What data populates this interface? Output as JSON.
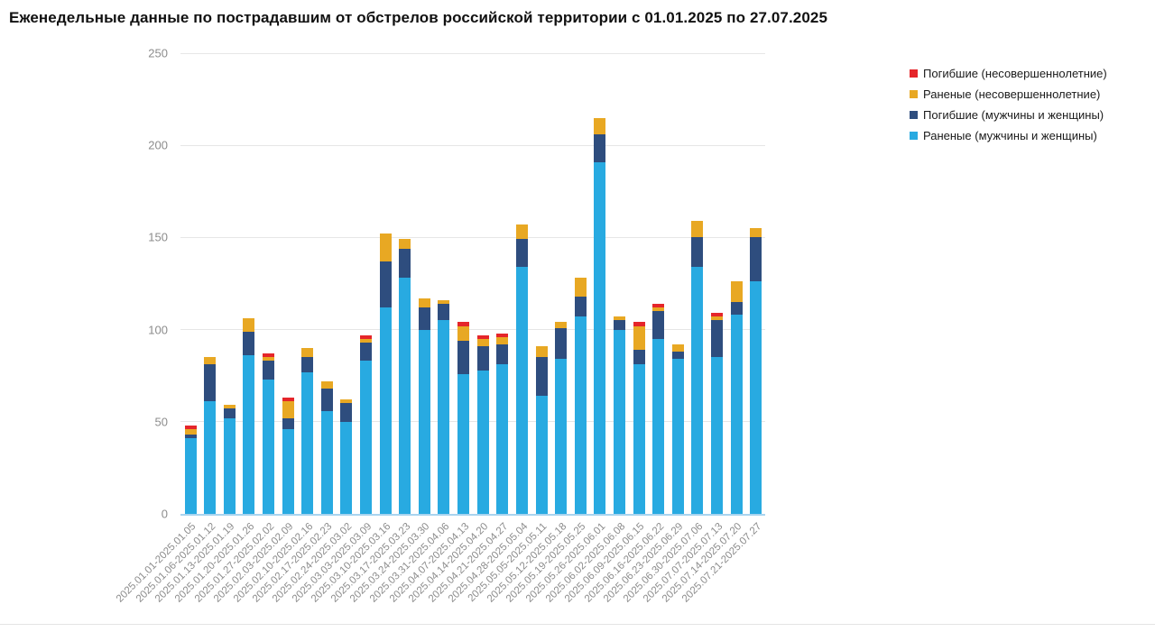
{
  "page": {
    "title": "Еженедельные данные по пострадавшим от обстрелов российской территории с 01.01.2025 по 27.07.2025"
  },
  "colors": {
    "red": "#e5252a",
    "orange": "#e8a823",
    "navy": "#2e4d7e",
    "light_blue": "#28aae1",
    "grid": "#e6e6e6",
    "axis_text": "#8c8c8c",
    "baseline": "#a9d4ef",
    "title_text": "#111111",
    "legend_text": "#1a1a1a"
  },
  "chart_data": {
    "type": "bar",
    "stacked": true,
    "title": "Еженедельные данные по пострадавшим от обстрелов российской территории с 01.01.2025 по 27.07.2025",
    "xlabel": "",
    "ylabel": "",
    "ylim": [
      0,
      250
    ],
    "yticks": [
      0,
      50,
      100,
      150,
      200,
      250
    ],
    "grid": true,
    "legend_position": "top-right",
    "categories": [
      "2025.01.01-2025.01.05",
      "2025.01.06-2025.01.12",
      "2025.01.13-2025.01.19",
      "2025.01.20-2025.01.26",
      "2025.01.27-2025.02.02",
      "2025.02.03-2025.02.09",
      "2025.02.10-2025.02.16",
      "2025.02.17-2025.02.23",
      "2025.02.24-2025.03.02",
      "2025.03.03-2025.03.09",
      "2025.03.10-2025.03.16",
      "2025.03.17-2025.03.23",
      "2025.03.24-2025.03.30",
      "2025.03.31-2025.04.06",
      "2025.04.07-2025.04.13",
      "2025.04.14-2025.04.20",
      "2025.04.21-2025.04.27",
      "2025.04.28-2025.05.04",
      "2025.05.05-2025.05.11",
      "2025.05.12-2025.05.18",
      "2025.05.19-2025.05.25",
      "2025.05.26-2025.06.01",
      "2025.06.02-2025.06.08",
      "2025.06.09-2025.06.15",
      "2025.06.16-2025.06.22",
      "2025.06.23-2025.06.29",
      "2025.06.30-2025.07.06",
      "2025.07.07-2025.07.13",
      "2025.07.14-2025.07.20",
      "2025.07.21-2025.07.27"
    ],
    "series": [
      {
        "name": "Погибшие (несовершеннолетние)",
        "color_key": "red",
        "values": [
          2,
          0,
          0,
          0,
          2,
          2,
          0,
          0,
          0,
          2,
          0,
          0,
          0,
          0,
          2,
          2,
          2,
          0,
          0,
          0,
          0,
          0,
          0,
          2,
          2,
          0,
          0,
          2,
          0,
          0
        ]
      },
      {
        "name": "Раненые (несовершеннолетние)",
        "color_key": "orange",
        "values": [
          3,
          4,
          2,
          7,
          2,
          9,
          5,
          4,
          2,
          2,
          15,
          5,
          5,
          2,
          8,
          4,
          4,
          8,
          6,
          3,
          10,
          9,
          2,
          13,
          2,
          4,
          9,
          2,
          11,
          5
        ]
      },
      {
        "name": "Погибшие (мужчины и женщины)",
        "color_key": "navy",
        "values": [
          2,
          20,
          5,
          13,
          10,
          6,
          8,
          12,
          10,
          10,
          25,
          16,
          12,
          9,
          18,
          13,
          11,
          15,
          21,
          17,
          11,
          15,
          5,
          8,
          15,
          4,
          16,
          20,
          7,
          24
        ]
      },
      {
        "name": "Раненые (мужчины и женщины)",
        "color_key": "light_blue",
        "values": [
          41,
          61,
          52,
          86,
          73,
          46,
          77,
          56,
          50,
          83,
          112,
          128,
          100,
          105,
          76,
          78,
          81,
          134,
          64,
          84,
          107,
          191,
          100,
          81,
          95,
          84,
          134,
          85,
          108,
          126
        ]
      }
    ]
  }
}
